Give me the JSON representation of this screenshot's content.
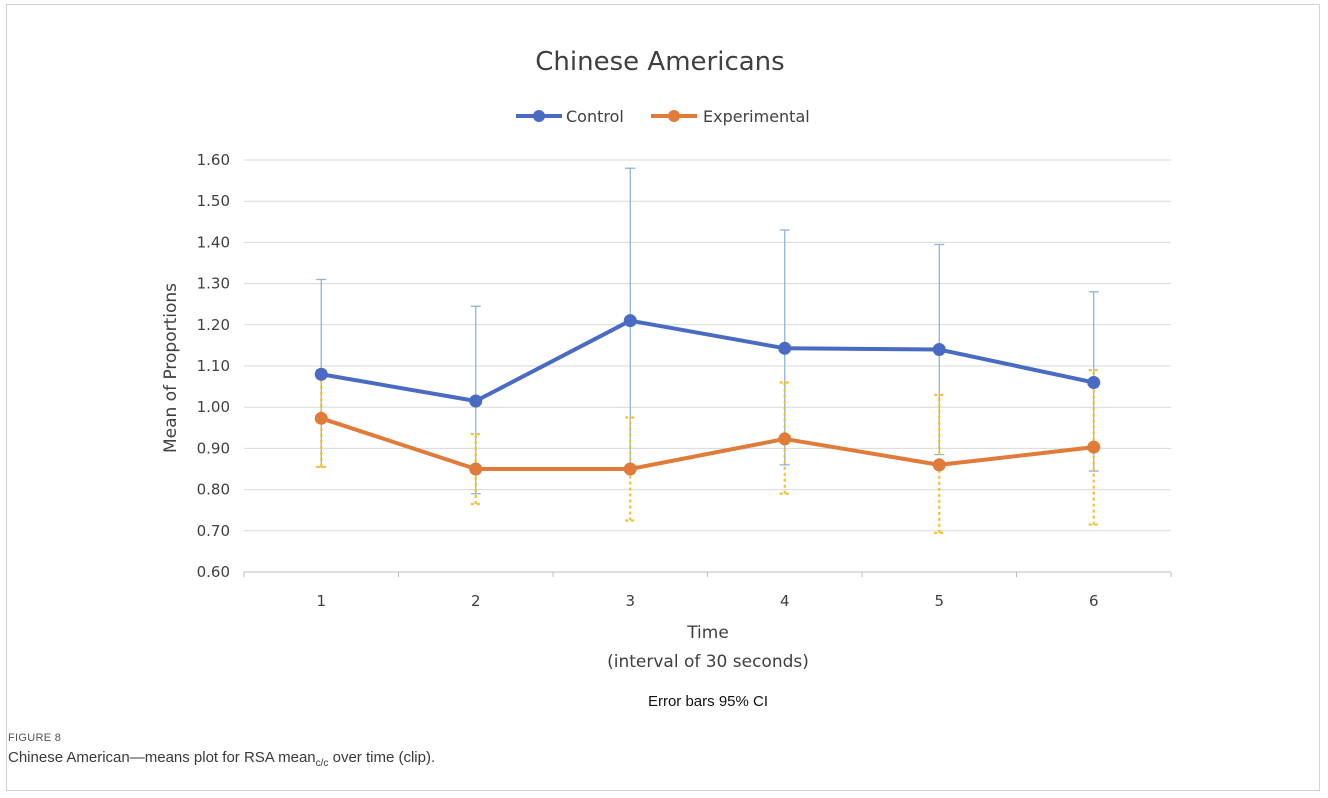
{
  "chart_data": {
    "type": "line",
    "title": "Chinese Americans",
    "xlabel_line1": "Time",
    "xlabel_line2": "(interval of 30 seconds)",
    "ylabel": "Mean of Proportions",
    "note": "Error bars 95% CI",
    "x": [
      "1",
      "2",
      "3",
      "4",
      "5",
      "6"
    ],
    "ylim": [
      0.6,
      1.6
    ],
    "yticks": [
      "0.60",
      "0.70",
      "0.80",
      "0.90",
      "1.00",
      "1.10",
      "1.20",
      "1.30",
      "1.40",
      "1.50",
      "1.60"
    ],
    "grid": "horizontal",
    "legend_position": "top",
    "series": [
      {
        "name": "Control",
        "color": "#4a6bc4",
        "values": [
          1.08,
          1.015,
          1.21,
          1.143,
          1.14,
          1.06
        ],
        "ci_low": [
          0.855,
          0.79,
          0.85,
          0.86,
          0.885,
          0.845
        ],
        "ci_high": [
          1.31,
          1.245,
          1.58,
          1.43,
          1.395,
          1.28
        ]
      },
      {
        "name": "Experimental",
        "color": "#e07b39",
        "values": [
          0.973,
          0.85,
          0.85,
          0.923,
          0.86,
          0.903
        ],
        "ci_low": [
          0.855,
          0.765,
          0.725,
          0.79,
          0.695,
          0.715
        ],
        "ci_high": [
          1.09,
          0.935,
          0.975,
          1.06,
          1.03,
          1.09
        ]
      }
    ]
  },
  "caption": {
    "figure_label": "FIGURE 8",
    "text_before": "Chinese American—means plot for RSA mean",
    "subscript": "c/c",
    "text_after": " over time (clip)."
  }
}
